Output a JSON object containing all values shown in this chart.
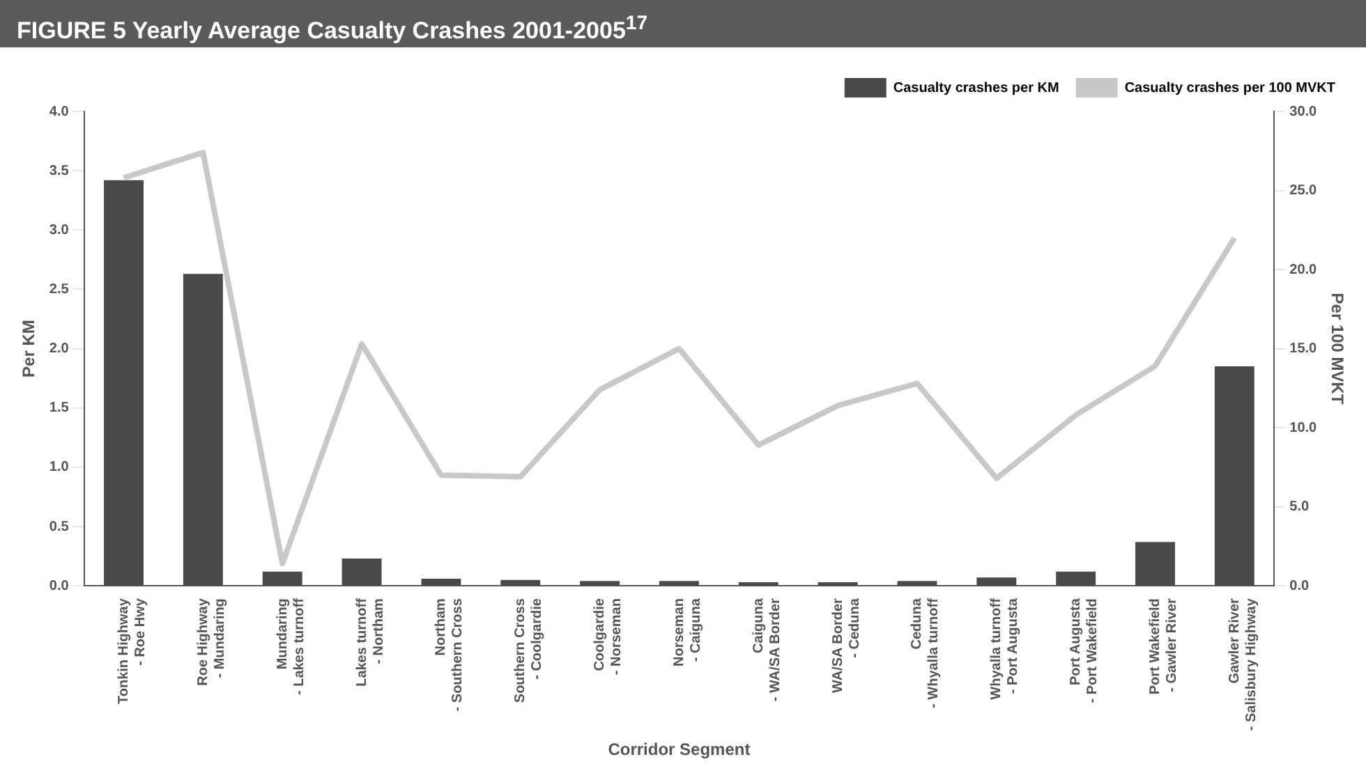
{
  "chart_data": {
    "type": "bar",
    "title": "FIGURE 5  Yearly Average Casualty Crashes 2001-2005$^{17}$",
    "xlabel": "Corridor Segment",
    "ylabel": "Per KM",
    "y2label": "Per 100 MVKT",
    "categories": [
      "Tonkin Highway - Roe Hwy",
      "Roe Highway - Mundaring",
      "Mundaring - Lakes turnoff",
      "Lakes turnoff - Northam",
      "Northam - Southern Cross",
      "Southern Cross - Coolgardie",
      "Coolgardie - Norseman",
      "Norseman - Caiguna",
      "Caiguna - WA/SA Border",
      "WA/SA Border - Ceduna",
      "Ceduna - Whyalla turnoff",
      "Whyalla turnoff - Port Augusta",
      "Port Augusta - Port Wakefield",
      "Port Wakefield - Gawler River",
      "Gawler River - Salisbury Highway"
    ],
    "series": [
      {
        "name": "Casualty crashes per KM",
        "color": "#4a4a4a",
        "values": [
          3.42,
          2.63,
          0.12,
          0.23,
          0.06,
          0.05,
          0.04,
          0.04,
          0.03,
          0.03,
          0.04,
          0.07,
          0.12,
          0.37,
          1.85
        ]
      },
      {
        "name": "Casualty crashes per 100 MVKT",
        "type": "line",
        "axis": "y2",
        "color": "#c8c8c8",
        "values": [
          25.8,
          27.4,
          1.4,
          15.3,
          7.0,
          6.9,
          12.4,
          15.0,
          8.9,
          11.4,
          12.8,
          6.8,
          10.8,
          13.9,
          22.0
        ]
      }
    ],
    "ylim": [
      0,
      4
    ],
    "yticks": [
      {
        "value": 0,
        "label": "0.0"
      },
      {
        "value": 0.5,
        "label": "0.5"
      },
      {
        "value": 1,
        "label": "1.0"
      },
      {
        "value": 1.5,
        "label": "1.5"
      },
      {
        "value": 2,
        "label": "2.0"
      },
      {
        "value": 2.5,
        "label": "2.5"
      },
      {
        "value": 3,
        "label": "3.0"
      },
      {
        "value": 3.5,
        "label": "3.5"
      },
      {
        "value": 4,
        "label": "4.0"
      }
    ],
    "y2lim": [
      0,
      30
    ],
    "y2ticks": [
      {
        "value": 0,
        "label": "0.0"
      },
      {
        "value": 5,
        "label": "5.0"
      },
      {
        "value": 10,
        "label": "10.0"
      },
      {
        "value": 15,
        "label": "15.0"
      },
      {
        "value": 20,
        "label": "20.0"
      },
      {
        "value": 25,
        "label": "25.0"
      },
      {
        "value": 30,
        "label": "30.0"
      }
    ],
    "legend": "top right",
    "grid": false,
    "marker": "none"
  }
}
